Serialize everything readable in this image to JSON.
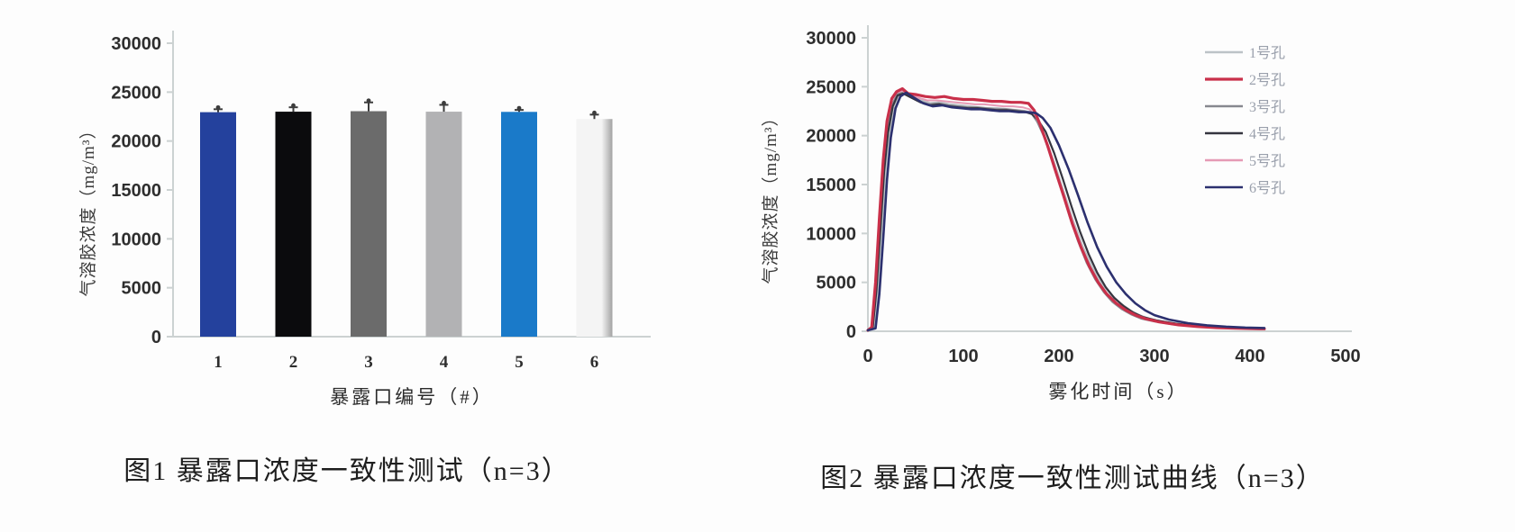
{
  "figure1": {
    "caption": "图1 暴露口浓度一致性测试（n=3）"
  },
  "figure2": {
    "caption": "图2 暴露口浓度一致性测试曲线（n=3）"
  },
  "chart_data": [
    {
      "id": "fig1",
      "type": "bar",
      "xlabel": "暴露口编号（#）",
      "ylabel": "气溶胶浓度（mg/m³）",
      "categories": [
        "1",
        "2",
        "3",
        "4",
        "5",
        "6"
      ],
      "values": [
        22950,
        23000,
        23050,
        23000,
        22980,
        22250
      ],
      "errors": [
        300,
        450,
        900,
        700,
        200,
        450
      ],
      "bar_colors": [
        "#24419d",
        "#0b0b0d",
        "#6b6b6b",
        "#b2b2b4",
        "#1a7ac9",
        "gradient"
      ],
      "gradient": {
        "from": "#f4f4f4",
        "to": "#a3a3a3"
      },
      "ylim": [
        0,
        30000
      ],
      "ytick_step": 5000,
      "grid": false,
      "axis_color": "#ccd2d2",
      "tick_label_color": "#2e2e2e",
      "error_color": "#3c3c3c"
    },
    {
      "id": "fig2",
      "type": "line",
      "xlabel": "雾化时间（s）",
      "ylabel": "气溶胶浓度（mg/m³）",
      "xlim": [
        0,
        500
      ],
      "xtick_step": 100,
      "ylim": [
        0,
        30000
      ],
      "ytick_step": 5000,
      "grid": false,
      "legend_position": "top-right",
      "axis_color": "#ccd2d2",
      "tick_label_color": "#2e2e2e",
      "legend_text_color": "#9aa0ac",
      "series": [
        {
          "name": "1号孔",
          "color": "#bcc3c7",
          "width": 2.5,
          "z": 1,
          "points": [
            [
              0,
              100
            ],
            [
              6,
              300
            ],
            [
              10,
              4000
            ],
            [
              14,
              10000
            ],
            [
              18,
              16000
            ],
            [
              22,
              20000
            ],
            [
              27,
              23000
            ],
            [
              32,
              24200
            ],
            [
              38,
              24500
            ],
            [
              45,
              24100
            ],
            [
              55,
              23700
            ],
            [
              65,
              23300
            ],
            [
              75,
              23400
            ],
            [
              85,
              23200
            ],
            [
              95,
              23100
            ],
            [
              105,
              23000
            ],
            [
              115,
              22900
            ],
            [
              125,
              22800
            ],
            [
              135,
              22800
            ],
            [
              145,
              22700
            ],
            [
              155,
              22600
            ],
            [
              165,
              22500
            ],
            [
              172,
              22200
            ],
            [
              178,
              21300
            ],
            [
              185,
              19800
            ],
            [
              195,
              17200
            ],
            [
              205,
              14200
            ],
            [
              215,
              11200
            ],
            [
              225,
              8600
            ],
            [
              235,
              6500
            ],
            [
              245,
              4900
            ],
            [
              255,
              3700
            ],
            [
              265,
              2800
            ],
            [
              275,
              2100
            ],
            [
              285,
              1600
            ],
            [
              295,
              1250
            ],
            [
              310,
              950
            ],
            [
              330,
              650
            ],
            [
              350,
              480
            ],
            [
              370,
              380
            ],
            [
              390,
              300
            ],
            [
              410,
              260
            ]
          ]
        },
        {
          "name": "2号孔",
          "color": "#c9304a",
          "width": 3.2,
          "z": 5,
          "points": [
            [
              0,
              100
            ],
            [
              4,
              400
            ],
            [
              8,
              5000
            ],
            [
              12,
              11500
            ],
            [
              16,
              17500
            ],
            [
              20,
              21500
            ],
            [
              25,
              23800
            ],
            [
              30,
              24500
            ],
            [
              36,
              24800
            ],
            [
              42,
              24300
            ],
            [
              50,
              24200
            ],
            [
              60,
              24000
            ],
            [
              70,
              23900
            ],
            [
              80,
              24000
            ],
            [
              90,
              23800
            ],
            [
              100,
              23700
            ],
            [
              110,
              23700
            ],
            [
              120,
              23600
            ],
            [
              130,
              23500
            ],
            [
              140,
              23500
            ],
            [
              150,
              23400
            ],
            [
              160,
              23400
            ],
            [
              168,
              23300
            ],
            [
              174,
              22600
            ],
            [
              180,
              21200
            ],
            [
              188,
              19000
            ],
            [
              196,
              16500
            ],
            [
              205,
              13800
            ],
            [
              214,
              11000
            ],
            [
              223,
              8600
            ],
            [
              232,
              6600
            ],
            [
              241,
              5000
            ],
            [
              250,
              3800
            ],
            [
              260,
              2850
            ],
            [
              270,
              2150
            ],
            [
              280,
              1650
            ],
            [
              290,
              1300
            ],
            [
              305,
              950
            ],
            [
              325,
              650
            ],
            [
              345,
              480
            ],
            [
              365,
              370
            ],
            [
              385,
              300
            ],
            [
              405,
              255
            ],
            [
              415,
              245
            ]
          ]
        },
        {
          "name": "3号孔",
          "color": "#87888f",
          "width": 2.2,
          "z": 2,
          "points": [
            [
              0,
              100
            ],
            [
              5,
              350
            ],
            [
              9,
              4500
            ],
            [
              13,
              10800
            ],
            [
              17,
              16800
            ],
            [
              21,
              20800
            ],
            [
              26,
              23300
            ],
            [
              31,
              24300
            ],
            [
              37,
              24400
            ],
            [
              44,
              24000
            ],
            [
              54,
              23500
            ],
            [
              64,
              23200
            ],
            [
              74,
              23300
            ],
            [
              84,
              23100
            ],
            [
              94,
              23000
            ],
            [
              104,
              22900
            ],
            [
              114,
              22900
            ],
            [
              124,
              22800
            ],
            [
              134,
              22700
            ],
            [
              144,
              22700
            ],
            [
              154,
              22600
            ],
            [
              164,
              22500
            ],
            [
              171,
              22300
            ],
            [
              177,
              21500
            ],
            [
              184,
              20000
            ],
            [
              193,
              17500
            ],
            [
              202,
              14700
            ],
            [
              211,
              11800
            ],
            [
              220,
              9200
            ],
            [
              229,
              7000
            ],
            [
              238,
              5300
            ],
            [
              247,
              4000
            ],
            [
              256,
              3000
            ],
            [
              266,
              2250
            ],
            [
              276,
              1700
            ],
            [
              286,
              1300
            ],
            [
              300,
              1000
            ],
            [
              320,
              700
            ],
            [
              340,
              520
            ],
            [
              360,
              400
            ],
            [
              380,
              320
            ],
            [
              400,
              270
            ],
            [
              413,
              255
            ]
          ]
        },
        {
          "name": "4号孔",
          "color": "#35353f",
          "width": 2.2,
          "z": 3,
          "points": [
            [
              0,
              100
            ],
            [
              5,
              300
            ],
            [
              9,
              4200
            ],
            [
              13,
              10300
            ],
            [
              17,
              16300
            ],
            [
              21,
              20300
            ],
            [
              26,
              23000
            ],
            [
              31,
              24100
            ],
            [
              37,
              24300
            ],
            [
              45,
              23900
            ],
            [
              55,
              23400
            ],
            [
              65,
              23100
            ],
            [
              75,
              23200
            ],
            [
              85,
              23000
            ],
            [
              95,
              22900
            ],
            [
              105,
              22800
            ],
            [
              115,
              22800
            ],
            [
              125,
              22700
            ],
            [
              135,
              22600
            ],
            [
              145,
              22600
            ],
            [
              155,
              22500
            ],
            [
              165,
              22400
            ],
            [
              172,
              22200
            ],
            [
              178,
              21600
            ],
            [
              186,
              20400
            ],
            [
              195,
              18200
            ],
            [
              204,
              15600
            ],
            [
              213,
              12800
            ],
            [
              222,
              10200
            ],
            [
              231,
              7900
            ],
            [
              240,
              6000
            ],
            [
              249,
              4500
            ],
            [
              258,
              3400
            ],
            [
              268,
              2550
            ],
            [
              278,
              1900
            ],
            [
              288,
              1450
            ],
            [
              302,
              1100
            ],
            [
              322,
              780
            ],
            [
              342,
              580
            ],
            [
              362,
              440
            ],
            [
              382,
              350
            ],
            [
              402,
              290
            ],
            [
              414,
              270
            ]
          ]
        },
        {
          "name": "5号孔",
          "color": "#e59ab5",
          "width": 2.0,
          "z": 4,
          "points": [
            [
              0,
              100
            ],
            [
              4,
              350
            ],
            [
              8,
              4800
            ],
            [
              12,
              11200
            ],
            [
              16,
              17200
            ],
            [
              20,
              21200
            ],
            [
              25,
              23600
            ],
            [
              30,
              24400
            ],
            [
              36,
              24600
            ],
            [
              43,
              24200
            ],
            [
              52,
              23900
            ],
            [
              62,
              23600
            ],
            [
              72,
              23600
            ],
            [
              82,
              23500
            ],
            [
              92,
              23400
            ],
            [
              102,
              23300
            ],
            [
              112,
              23200
            ],
            [
              122,
              23200
            ],
            [
              132,
              23100
            ],
            [
              142,
              23000
            ],
            [
              152,
              23000
            ],
            [
              162,
              22900
            ],
            [
              169,
              22700
            ],
            [
              175,
              22100
            ],
            [
              182,
              20700
            ],
            [
              190,
              18600
            ],
            [
              198,
              16100
            ],
            [
              207,
              13400
            ],
            [
              216,
              10700
            ],
            [
              225,
              8300
            ],
            [
              234,
              6300
            ],
            [
              243,
              4800
            ],
            [
              252,
              3600
            ],
            [
              262,
              2700
            ],
            [
              272,
              2050
            ],
            [
              282,
              1550
            ],
            [
              292,
              1220
            ],
            [
              306,
              920
            ],
            [
              326,
              640
            ],
            [
              346,
              470
            ],
            [
              366,
              365
            ],
            [
              386,
              295
            ],
            [
              406,
              250
            ]
          ]
        },
        {
          "name": "6号孔",
          "color": "#2c306f",
          "width": 2.6,
          "z": 6,
          "points": [
            [
              0,
              100
            ],
            [
              8,
              300
            ],
            [
              12,
              3800
            ],
            [
              16,
              9500
            ],
            [
              20,
              15500
            ],
            [
              24,
              19800
            ],
            [
              29,
              22800
            ],
            [
              34,
              24000
            ],
            [
              40,
              24400
            ],
            [
              48,
              23900
            ],
            [
              58,
              23300
            ],
            [
              68,
              23000
            ],
            [
              78,
              23100
            ],
            [
              88,
              22900
            ],
            [
              98,
              22800
            ],
            [
              108,
              22700
            ],
            [
              118,
              22700
            ],
            [
              128,
              22600
            ],
            [
              138,
              22500
            ],
            [
              148,
              22500
            ],
            [
              158,
              22400
            ],
            [
              168,
              22400
            ],
            [
              176,
              22300
            ],
            [
              183,
              21800
            ],
            [
              191,
              20800
            ],
            [
              200,
              19000
            ],
            [
              210,
              16600
            ],
            [
              220,
              13900
            ],
            [
              230,
              11100
            ],
            [
              240,
              8600
            ],
            [
              250,
              6600
            ],
            [
              260,
              5000
            ],
            [
              270,
              3800
            ],
            [
              280,
              2850
            ],
            [
              290,
              2150
            ],
            [
              300,
              1650
            ],
            [
              315,
              1200
            ],
            [
              335,
              830
            ],
            [
              355,
              610
            ],
            [
              375,
              470
            ],
            [
              395,
              380
            ],
            [
              415,
              330
            ]
          ]
        }
      ]
    }
  ]
}
